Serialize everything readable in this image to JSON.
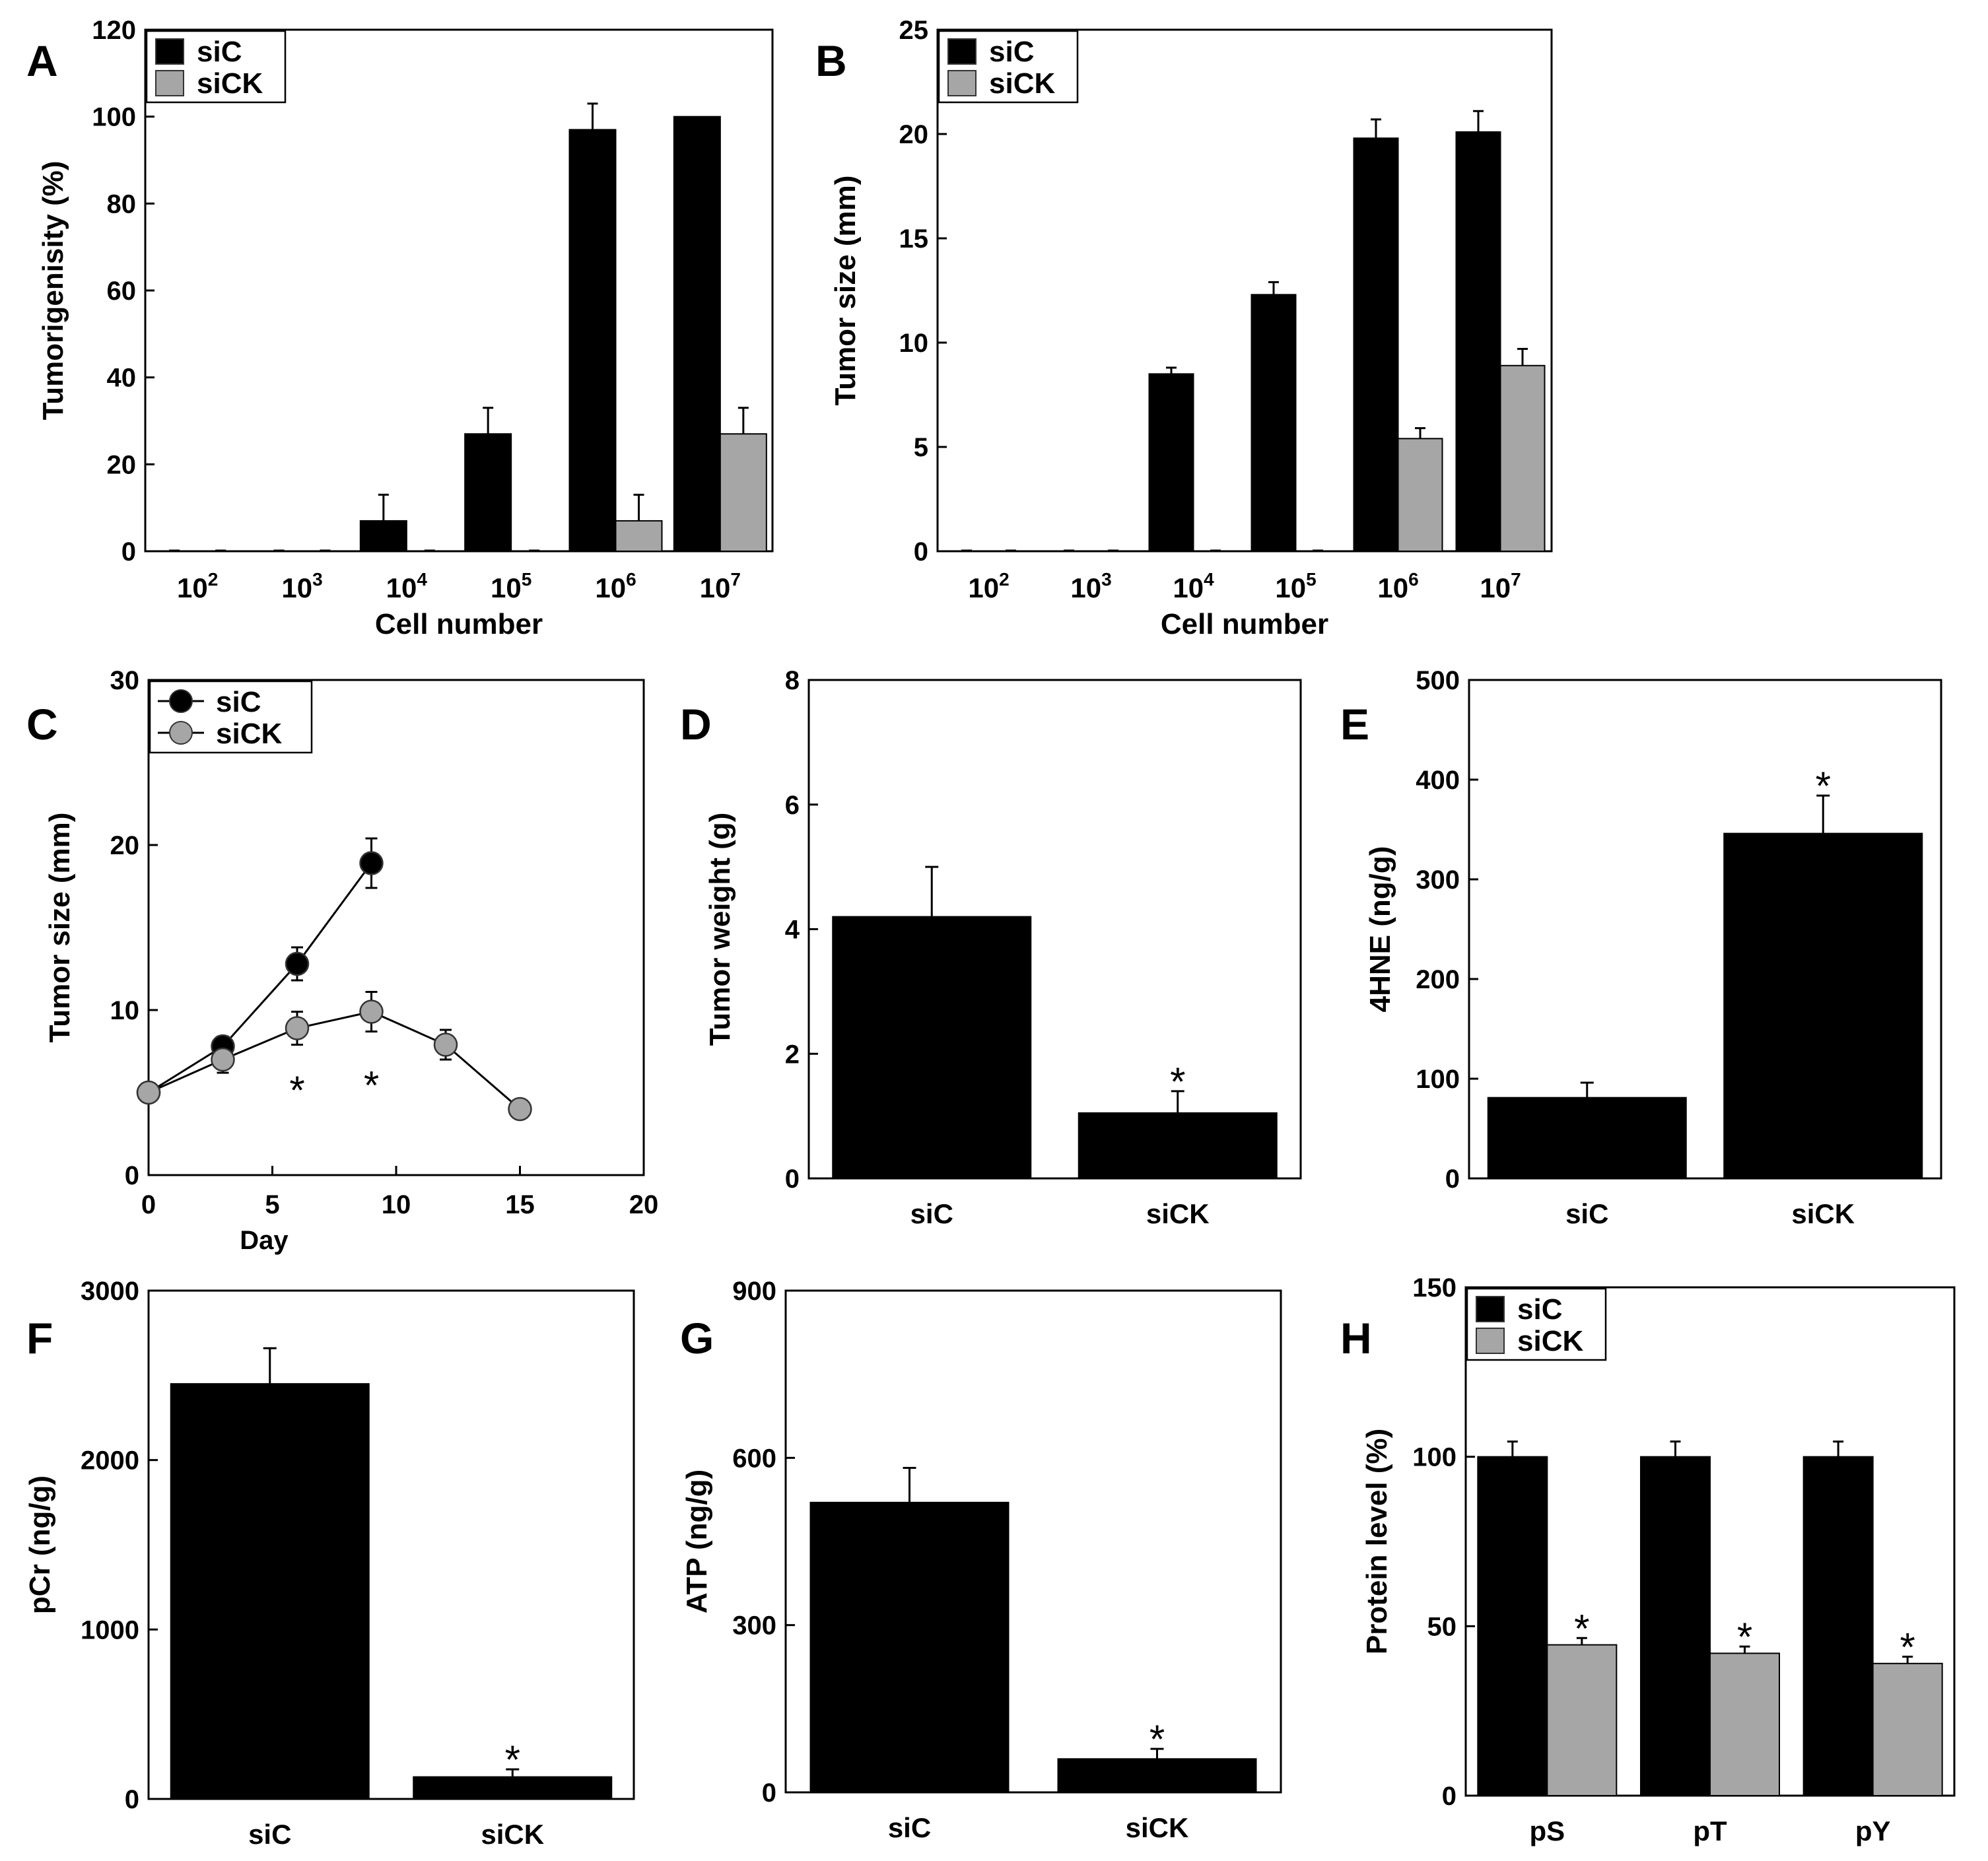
{
  "figure": {
    "colors": {
      "siC": "#000000",
      "siCK": "#a6a6a6",
      "axis": "#000000"
    }
  },
  "chart_data": [
    {
      "panel": "A",
      "type": "bar",
      "categories": [
        "10^2",
        "10^3",
        "10^4",
        "10^5",
        "10^6",
        "10^7"
      ],
      "tick_bases": [
        "10",
        "10",
        "10",
        "10",
        "10",
        "10"
      ],
      "tick_exponents": [
        "2",
        "3",
        "4",
        "5",
        "6",
        "7"
      ],
      "xlabel": "Cell number",
      "ylabel": "Tumorigenisity (%)",
      "ylim": [
        0,
        120
      ],
      "yticks": [
        0,
        20,
        40,
        60,
        80,
        100,
        120
      ],
      "legend": {
        "entries": [
          "siC",
          "siCK"
        ],
        "placement": "top-left"
      },
      "series": [
        {
          "name": "siC",
          "color": "#000000",
          "values": [
            0,
            0,
            7,
            27,
            97,
            100
          ],
          "errors": [
            0,
            0,
            6,
            6,
            6,
            0
          ]
        },
        {
          "name": "siCK",
          "color": "#a6a6a6",
          "values": [
            0,
            0,
            0,
            0,
            7,
            27
          ],
          "errors": [
            0,
            0,
            0,
            0,
            6,
            6
          ]
        }
      ],
      "significance": [],
      "grid": false
    },
    {
      "panel": "B",
      "type": "bar",
      "categories": [
        "10^2",
        "10^3",
        "10^4",
        "10^5",
        "10^6",
        "10^7"
      ],
      "tick_bases": [
        "10",
        "10",
        "10",
        "10",
        "10",
        "10"
      ],
      "tick_exponents": [
        "2",
        "3",
        "4",
        "5",
        "6",
        "7"
      ],
      "xlabel": "Cell number",
      "ylabel": "Tumor size (mm)",
      "ylim": [
        0,
        25
      ],
      "yticks": [
        0,
        5,
        10,
        15,
        20,
        25
      ],
      "legend": {
        "entries": [
          "siC",
          "siCK"
        ],
        "placement": "top-left"
      },
      "series": [
        {
          "name": "siC",
          "color": "#000000",
          "values": [
            0,
            0,
            8.5,
            12.3,
            19.8,
            20.1
          ],
          "errors": [
            0,
            0,
            0.3,
            0.6,
            0.9,
            1.0
          ]
        },
        {
          "name": "siCK",
          "color": "#a6a6a6",
          "values": [
            0,
            0,
            0,
            0,
            5.4,
            8.9
          ],
          "errors": [
            0,
            0,
            0,
            0,
            0.5,
            0.8
          ]
        }
      ],
      "significance": [],
      "grid": false
    },
    {
      "panel": "C",
      "type": "line",
      "xlabel": "Day",
      "ylabel": "Tumor size (mm)",
      "xlim": [
        0,
        20
      ],
      "ylim": [
        0,
        30
      ],
      "xticks": [
        0,
        5,
        10,
        15,
        20
      ],
      "yticks": [
        0,
        10,
        20,
        30
      ],
      "legend": {
        "entries": [
          "siC",
          "siCK"
        ],
        "placement": "top-left"
      },
      "series": [
        {
          "name": "siC",
          "color": "#000000",
          "x": [
            0,
            3,
            6,
            9
          ],
          "values": [
            5,
            7.8,
            12.8,
            18.9
          ],
          "errors": [
            0,
            0.6,
            1.0,
            1.5
          ]
        },
        {
          "name": "siCK",
          "color": "#a6a6a6",
          "x": [
            0,
            3,
            6,
            9,
            12,
            15
          ],
          "values": [
            5,
            7,
            8.9,
            9.9,
            7.9,
            4
          ],
          "errors": [
            0,
            0.8,
            1.0,
            1.2,
            0.9,
            0
          ]
        }
      ],
      "significance": [
        {
          "x": 6,
          "y": 6.0
        },
        {
          "x": 9,
          "y": 6.3
        }
      ],
      "grid": false
    },
    {
      "panel": "D",
      "type": "bar",
      "categories": [
        "siC",
        "siCK"
      ],
      "xlabel": "",
      "ylabel": "Tumor weight (g)",
      "ylim": [
        0,
        8
      ],
      "yticks": [
        0,
        2,
        4,
        6,
        8
      ],
      "series": [
        {
          "name": "",
          "color": "#000000",
          "values": [
            4.2,
            1.05
          ],
          "errors": [
            0.8,
            0.35
          ]
        }
      ],
      "significance": [
        {
          "category": 1
        }
      ],
      "grid": false
    },
    {
      "panel": "E",
      "type": "bar",
      "categories": [
        "siC",
        "siCK"
      ],
      "xlabel": "",
      "ylabel": "4HNE (ng/g)",
      "ylim": [
        0,
        500
      ],
      "yticks": [
        0,
        100,
        200,
        300,
        400,
        500
      ],
      "series": [
        {
          "name": "",
          "color": "#000000",
          "values": [
            81,
            346
          ],
          "errors": [
            15,
            38
          ]
        }
      ],
      "significance": [
        {
          "category": 1
        }
      ],
      "grid": false
    },
    {
      "panel": "F",
      "type": "bar",
      "categories": [
        "siC",
        "siCK"
      ],
      "xlabel": "",
      "ylabel": "pCr (ng/g)",
      "ylim": [
        0,
        3000
      ],
      "yticks": [
        0,
        1000,
        2000,
        3000
      ],
      "series": [
        {
          "name": "",
          "color": "#000000",
          "values": [
            2450,
            130
          ],
          "errors": [
            210,
            45
          ]
        }
      ],
      "significance": [
        {
          "category": 1
        }
      ],
      "grid": false
    },
    {
      "panel": "G",
      "type": "bar",
      "categories": [
        "siC",
        "siCK"
      ],
      "xlabel": "",
      "ylabel": "ATP (ng/g)",
      "ylim": [
        0,
        900
      ],
      "yticks": [
        0,
        300,
        600,
        900
      ],
      "series": [
        {
          "name": "",
          "color": "#000000",
          "values": [
            520,
            60
          ],
          "errors": [
            62,
            18
          ]
        }
      ],
      "significance": [
        {
          "category": 1
        }
      ],
      "grid": false
    },
    {
      "panel": "H",
      "type": "bar",
      "categories": [
        "pS",
        "pT",
        "pY"
      ],
      "xlabel": "",
      "ylabel": "Protein level (%)",
      "ylim": [
        0,
        150
      ],
      "yticks": [
        0,
        50,
        100,
        150
      ],
      "legend": {
        "entries": [
          "siC",
          "siCK"
        ],
        "placement": "top-left"
      },
      "series": [
        {
          "name": "siC",
          "color": "#000000",
          "values": [
            100,
            100,
            100
          ],
          "errors": [
            4.5,
            4.5,
            4.5
          ]
        },
        {
          "name": "siCK",
          "color": "#a6a6a6",
          "values": [
            44.5,
            42,
            39
          ],
          "errors": [
            2,
            2,
            2
          ]
        }
      ],
      "significance": [
        {
          "category": 0,
          "series": 1
        },
        {
          "category": 1,
          "series": 1
        },
        {
          "category": 2,
          "series": 1
        }
      ],
      "grid": false
    }
  ]
}
